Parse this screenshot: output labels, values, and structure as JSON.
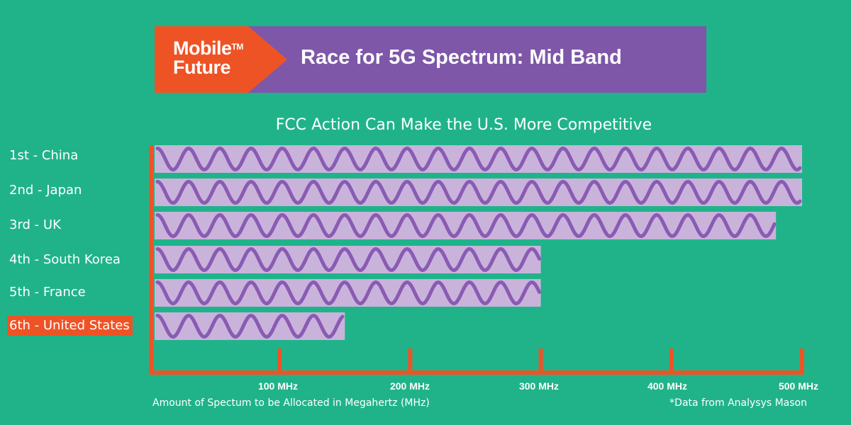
{
  "banner": {
    "logo_line1": "Mobile",
    "logo_tm": "TM",
    "logo_line2": "Future",
    "title": "Race for 5G Spectrum: Mid Band"
  },
  "colors": {
    "background": "#20b38a",
    "accent_orange": "#ee5325",
    "banner_purple": "#7e57a8",
    "bar_fill": "#c9b3db",
    "wave": "#8a5bb3"
  },
  "chart_data": {
    "type": "bar",
    "orientation": "horizontal",
    "title": "FCC Action Can Make the U.S. More Competitive",
    "categories": [
      "1st - China",
      "2nd - Japan",
      "3rd - UK",
      "4th - South Korea",
      "5th - France",
      "6th - United States"
    ],
    "values": [
      500,
      500,
      480,
      300,
      300,
      150
    ],
    "highlight_category": "6th - United States",
    "xlim": [
      0,
      500
    ],
    "ticks": [
      100,
      200,
      300,
      400,
      500
    ],
    "tick_labels": [
      "100 MHz",
      "200 MHz",
      "300 MHz",
      "400 MHz",
      "500 MHz"
    ],
    "xlabel": "Amount of Spectum to be Allocated in Megahertz (MHz)",
    "note": "*Data from Analysys Mason",
    "grid": false
  }
}
